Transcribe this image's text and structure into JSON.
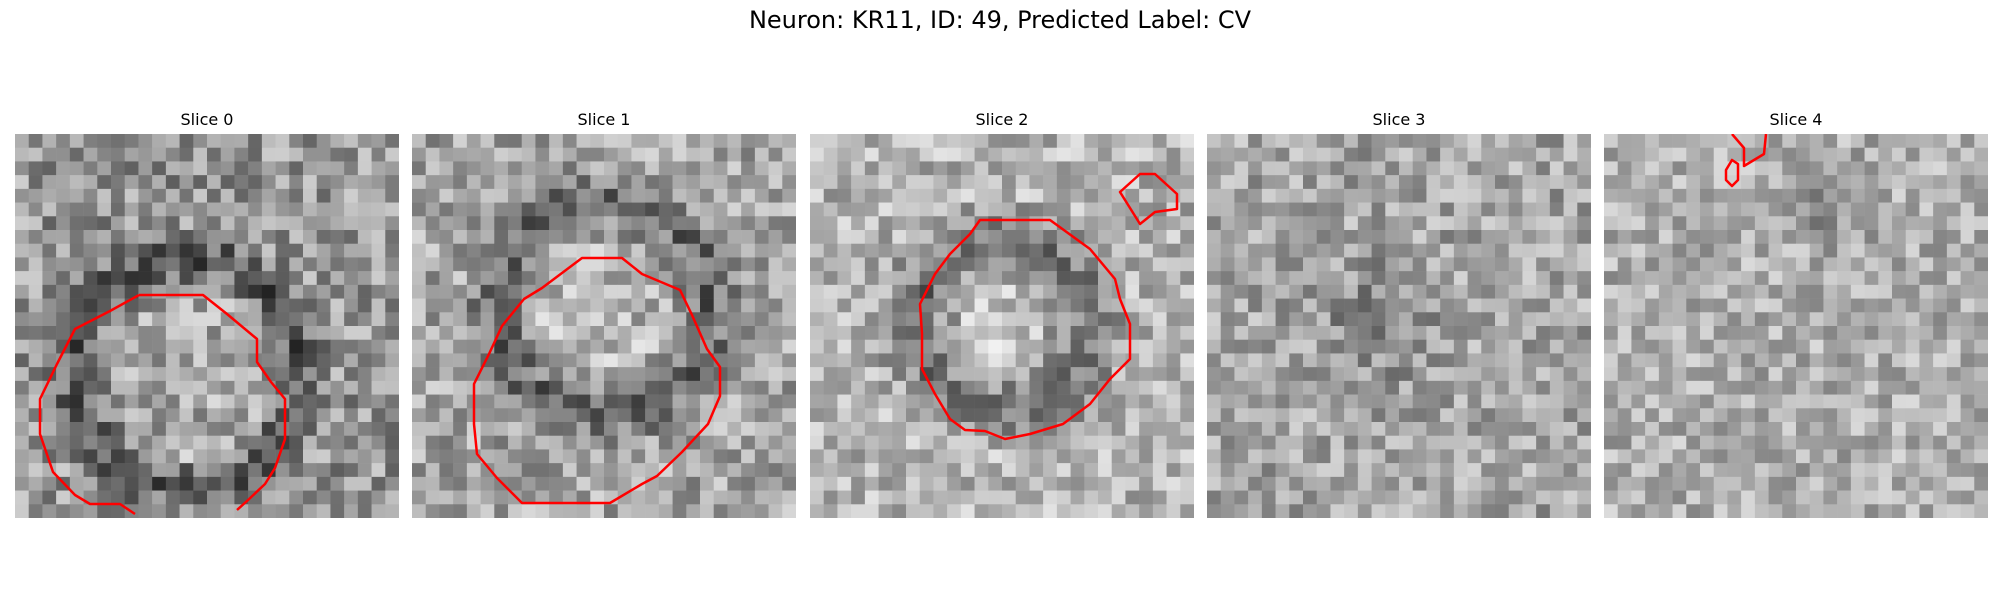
{
  "figure": {
    "title": "Neuron: KR11, ID: 49, Predicted Label: CV"
  },
  "panels": [
    {
      "title": "Slice 0",
      "contour_color": "#ff0000"
    },
    {
      "title": "Slice 1",
      "contour_color": "#ff0000"
    },
    {
      "title": "Slice 2",
      "contour_color": "#ff0000"
    },
    {
      "title": "Slice 3",
      "contour_color": "#ff0000"
    },
    {
      "title": "Slice 4",
      "contour_color": "#ff0000"
    }
  ]
}
